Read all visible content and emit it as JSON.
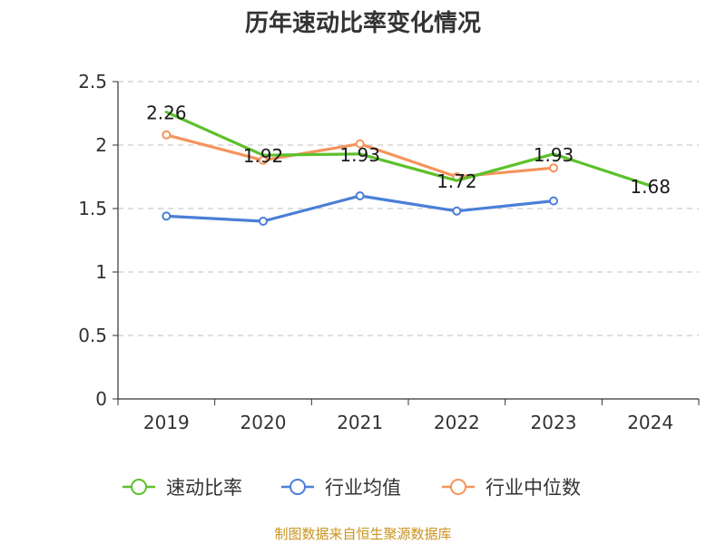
{
  "chart_data": {
    "type": "line",
    "title": "历年速动比率变化情况",
    "categories": [
      "2019",
      "2020",
      "2021",
      "2022",
      "2023",
      "2024"
    ],
    "ylim": [
      0,
      2.5
    ],
    "yticks": [
      "0",
      "0.5",
      "1",
      "1.5",
      "2",
      "2.5"
    ],
    "grid": true,
    "legend_position": "bottom",
    "series": [
      {
        "name": "速动比率",
        "color": "#5cc12b",
        "values": [
          2.26,
          1.92,
          1.93,
          1.72,
          1.93,
          1.68
        ],
        "labels": [
          "2.26",
          "1.92",
          "1.93",
          "1.72",
          "1.93",
          "1.68"
        ]
      },
      {
        "name": "行业均值",
        "color": "#4a7fd8",
        "values": [
          1.44,
          1.4,
          1.6,
          1.48,
          1.56,
          null
        ]
      },
      {
        "name": "行业中位数",
        "color": "#f5935c",
        "values": [
          2.08,
          1.88,
          2.01,
          1.75,
          1.82,
          null
        ]
      }
    ],
    "source": "制图数据来自恒生聚源数据库"
  }
}
